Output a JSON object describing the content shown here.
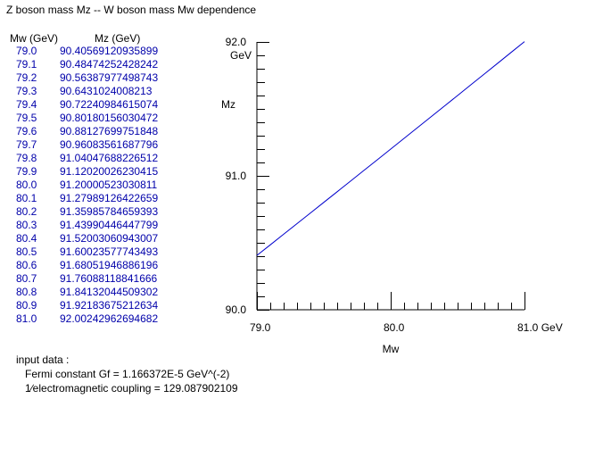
{
  "title": "Z boson mass Mz -- W boson mass Mw dependence",
  "table": {
    "headers": {
      "mw": "Mw (GeV)",
      "mz": "Mz (GeV)"
    },
    "rows": [
      [
        "79.0",
        "90.40569120935899"
      ],
      [
        "79.1",
        "90.48474252428242"
      ],
      [
        "79.2",
        "90.56387977498743"
      ],
      [
        "79.3",
        "90.6431024008213"
      ],
      [
        "79.4",
        "90.72240984615074"
      ],
      [
        "79.5",
        "90.80180156030472"
      ],
      [
        "79.6",
        "90.88127699751848"
      ],
      [
        "79.7",
        "90.96083561687796"
      ],
      [
        "79.8",
        "91.04047688226512"
      ],
      [
        "79.9",
        "91.12020026230415"
      ],
      [
        "80.0",
        "91.20000523030811"
      ],
      [
        "80.1",
        "91.27989126422659"
      ],
      [
        "80.2",
        "91.35985784659393"
      ],
      [
        "80.3",
        "91.43990446447799"
      ],
      [
        "80.4",
        "91.52003060943007"
      ],
      [
        "80.5",
        "91.60023577743493"
      ],
      [
        "80.6",
        "91.68051946886196"
      ],
      [
        "80.7",
        "91.76088118841666"
      ],
      [
        "80.8",
        "91.84132044509302"
      ],
      [
        "80.9",
        "91.92183675212634"
      ],
      [
        "81.0",
        "92.00242962694682"
      ]
    ]
  },
  "input": {
    "heading": "input data :",
    "fermi": "Fermi constant  Gf = 1.166372E-5 GeV^(-2)",
    "coupling": "1∕electromagnetic coupling = 129.087902109"
  },
  "colors": {
    "text": "#000000",
    "data": "#0000aa",
    "line": "#0000cc"
  },
  "chart_data": {
    "type": "line",
    "xlabel": "Mw",
    "ylabel": "Mz",
    "x_unit": "GeV",
    "y_unit": "GeV",
    "xlim": [
      79.0,
      81.0
    ],
    "ylim": [
      90.0,
      92.0
    ],
    "x_ticks": [
      "79.0",
      "80.0",
      "81.0"
    ],
    "y_ticks": [
      "90.0",
      "91.0",
      "92.0"
    ],
    "x_major": [
      79.0,
      80.0,
      81.0
    ],
    "y_major": [
      90.0,
      91.0,
      92.0
    ],
    "x_minor_step": 0.1,
    "y_minor_step": 0.1,
    "grid": false,
    "x": [
      79.0,
      79.1,
      79.2,
      79.3,
      79.4,
      79.5,
      79.6,
      79.7,
      79.8,
      79.9,
      80.0,
      80.1,
      80.2,
      80.3,
      80.4,
      80.5,
      80.6,
      80.7,
      80.8,
      80.9,
      81.0
    ],
    "y": [
      90.40569120935899,
      90.48474252428242,
      90.56387977498743,
      90.6431024008213,
      90.72240984615074,
      90.80180156030472,
      90.88127699751848,
      90.96083561687796,
      91.04047688226512,
      91.12020026230415,
      91.20000523030811,
      91.27989126422659,
      91.35985784659393,
      91.43990446447799,
      91.52003060943007,
      91.60023577743493,
      91.68051946886196,
      91.76088118841666,
      91.84132044509302,
      91.92183675212634,
      92.00242962694682
    ]
  }
}
